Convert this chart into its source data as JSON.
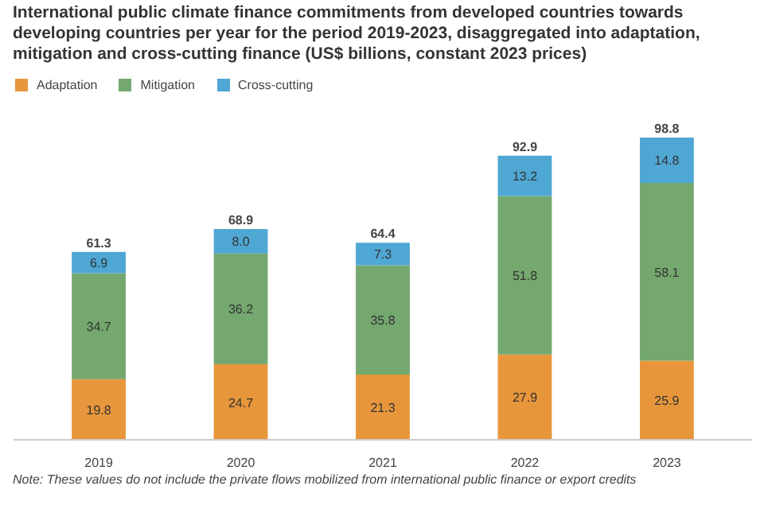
{
  "chart_data": {
    "type": "bar",
    "title": "International public climate finance commitments from developed countries towards developing countries per year for the period 2019-2023, disaggregated into adaptation, mitigation and cross-cutting finance (US$ billions, constant 2023 prices)",
    "categories": [
      "2019",
      "2020",
      "2021",
      "2022",
      "2023"
    ],
    "stacked": true,
    "legend": "top left",
    "data_labels": true,
    "series": [
      {
        "name": "Adaptation",
        "color": "#e8963c",
        "values": [
          19.8,
          24.7,
          21.3,
          27.9,
          25.9
        ],
        "value_labels": [
          "19.8",
          "24.7",
          "21.3",
          "27.9",
          "25.9"
        ]
      },
      {
        "name": "Mitigation",
        "color": "#74a86e",
        "values": [
          34.7,
          36.2,
          35.8,
          51.8,
          58.1
        ],
        "value_labels": [
          "34.7",
          "36.2",
          "35.8",
          "51.8",
          "58.1"
        ]
      },
      {
        "name": "Cross-cutting",
        "color": "#4fa7d3",
        "values": [
          6.9,
          8.0,
          7.3,
          13.2,
          14.8
        ],
        "value_labels": [
          "6.9",
          "8.0",
          "7.3",
          "13.2",
          "14.8"
        ]
      }
    ],
    "totals": [
      "61.3",
      "68.9",
      "64.4",
      "92.9",
      "98.8"
    ],
    "annotations": [
      "Note: These values do not include the private flows mobilized from international public finance or export credits"
    ]
  }
}
